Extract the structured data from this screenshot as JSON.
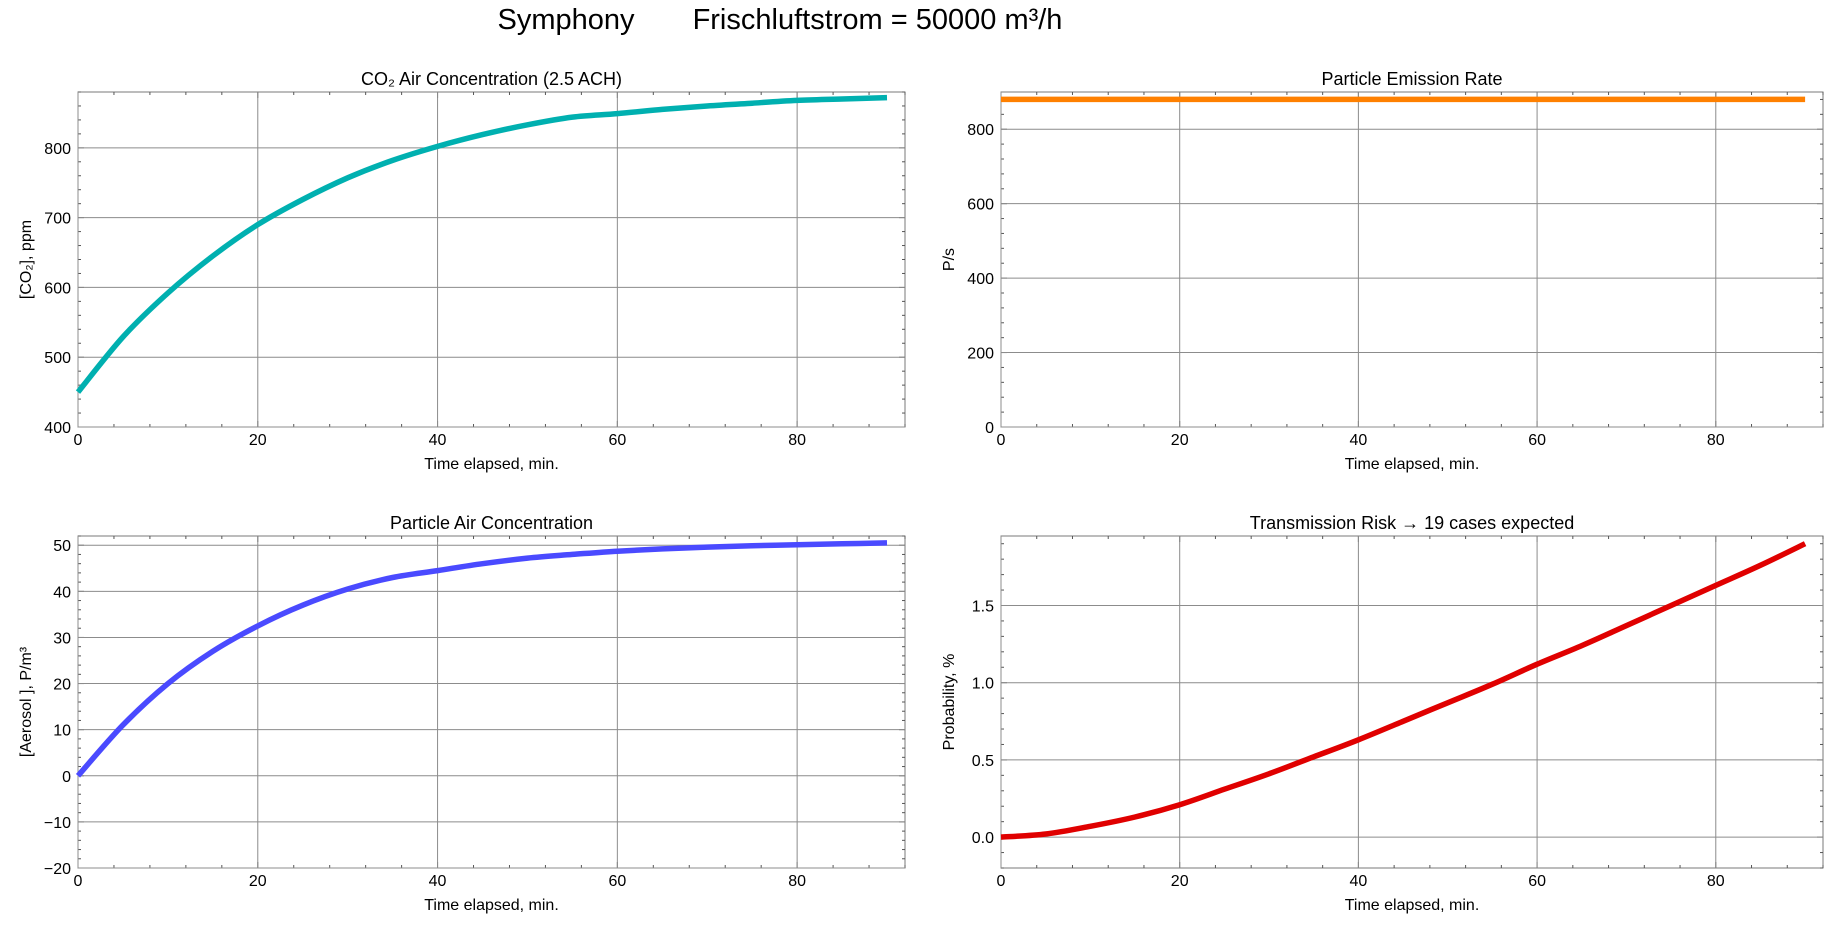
{
  "figure": {
    "title_left": "Symphony",
    "title_right": "Frischluftstrom = 50000 m³/h"
  },
  "chart_data": [
    {
      "id": "co2",
      "type": "line",
      "title": "CO₂ Air Concentration    (2.5 ACH)",
      "xlabel": "Time elapsed,  min.",
      "ylabel": "[CO₂],  ppm",
      "xlim": [
        0,
        92
      ],
      "ylim": [
        400,
        880
      ],
      "xticks": [
        0,
        20,
        40,
        60,
        80
      ],
      "yticks": [
        400,
        500,
        600,
        700,
        800
      ],
      "grid": true,
      "color": "#00b0b0",
      "series": [
        {
          "x": [
            0,
            5,
            10,
            15,
            20,
            25,
            30,
            35,
            40,
            45,
            50,
            55,
            60,
            65,
            70,
            75,
            80,
            85,
            90
          ],
          "y": [
            450,
            529,
            592,
            645,
            690,
            726,
            757,
            782,
            802,
            819,
            833,
            844,
            849,
            855,
            860,
            864,
            868,
            870,
            872
          ]
        }
      ]
    },
    {
      "id": "emission",
      "type": "line",
      "title": "Particle Emission Rate",
      "xlabel": "Time elapsed,  min.",
      "ylabel": "P/s",
      "xlim": [
        0,
        92
      ],
      "ylim": [
        0,
        900
      ],
      "xticks": [
        0,
        20,
        40,
        60,
        80
      ],
      "yticks": [
        0,
        200,
        400,
        600,
        800
      ],
      "grid": true,
      "color": "#ff8000",
      "series": [
        {
          "x": [
            0,
            90
          ],
          "y": [
            880,
            880
          ]
        }
      ]
    },
    {
      "id": "aerosol",
      "type": "line",
      "title": "Particle Air Concentration",
      "xlabel": "Time elapsed,  min.",
      "ylabel": "[Aerosol ],  P/m³",
      "xlim": [
        0,
        92
      ],
      "ylim": [
        -20,
        52
      ],
      "xticks": [
        0,
        20,
        40,
        60,
        80
      ],
      "yticks": [
        -20,
        -10,
        0,
        10,
        20,
        30,
        40,
        50
      ],
      "grid": true,
      "color": "#4a4aff",
      "series": [
        {
          "x": [
            0,
            5,
            10,
            15,
            20,
            25,
            30,
            35,
            40,
            45,
            50,
            55,
            60,
            65,
            70,
            75,
            80,
            85,
            90
          ],
          "y": [
            0,
            11,
            20,
            27,
            32.5,
            37,
            40.5,
            43,
            44.5,
            46,
            47.2,
            48,
            48.7,
            49.2,
            49.6,
            49.9,
            50.1,
            50.3,
            50.5
          ]
        }
      ]
    },
    {
      "id": "risk",
      "type": "line",
      "title": "Transmission Risk  →  19 cases expected",
      "xlabel": "Time elapsed,  min.",
      "ylabel": "Probability,  %",
      "xlim": [
        0,
        92
      ],
      "ylim": [
        -0.2,
        1.95
      ],
      "xticks": [
        0,
        20,
        40,
        60,
        80
      ],
      "yticks": [
        0,
        0.5,
        1,
        1.5
      ],
      "ytick_labels": [
        "0.0",
        "0.5",
        "1.0",
        "1.5"
      ],
      "grid": true,
      "color": "#e00000",
      "series": [
        {
          "x": [
            0,
            5,
            10,
            15,
            20,
            25,
            30,
            35,
            40,
            45,
            50,
            55,
            60,
            65,
            70,
            75,
            80,
            85,
            90
          ],
          "y": [
            0,
            0.02,
            0.07,
            0.13,
            0.21,
            0.31,
            0.41,
            0.52,
            0.63,
            0.75,
            0.87,
            0.99,
            1.12,
            1.24,
            1.37,
            1.5,
            1.63,
            1.76,
            1.9
          ]
        }
      ]
    }
  ]
}
